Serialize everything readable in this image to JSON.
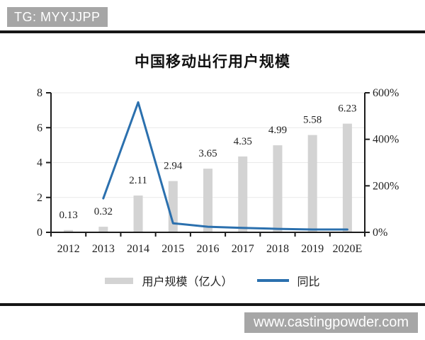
{
  "header": {
    "badge": "TG: MYYJJPP"
  },
  "footer": {
    "watermark": "www.castingpowder.com"
  },
  "chart_data": {
    "type": "bar",
    "subtype": "bar-line-combo",
    "title": "中国移动出行用户规模",
    "categories": [
      "2012",
      "2013",
      "2014",
      "2015",
      "2016",
      "2017",
      "2018",
      "2019",
      "2020E"
    ],
    "series": [
      {
        "name": "用户规模（亿人）",
        "type": "bar",
        "axis": "left",
        "color": "#d3d3d3",
        "values": [
          0.13,
          0.32,
          2.11,
          2.94,
          3.65,
          4.35,
          4.99,
          5.58,
          6.23
        ],
        "labels": [
          "0.13",
          "0.32",
          "2.11",
          "2.94",
          "3.65",
          "4.35",
          "4.99",
          "5.58",
          "6.23"
        ]
      },
      {
        "name": "同比",
        "type": "line",
        "axis": "right",
        "color": "#2b70ae",
        "values": [
          null,
          146,
          559,
          39,
          24,
          19,
          15,
          12,
          12
        ]
      }
    ],
    "left_axis": {
      "min": 0,
      "max": 8,
      "tick_values": [
        0,
        2,
        4,
        6,
        8
      ],
      "tick_labels": [
        "0",
        "2",
        "4",
        "6",
        "8"
      ]
    },
    "right_axis": {
      "min": 0,
      "max": 600,
      "tick_values": [
        0,
        200,
        400,
        600
      ],
      "tick_labels": [
        "0%",
        "200%",
        "400%",
        "600%"
      ]
    },
    "grid": true,
    "legend_position": "bottom"
  },
  "colors": {
    "axis": "#1c1c1c",
    "gridline": "#e9e9e9",
    "badge_bg": "#a6a6a6"
  }
}
